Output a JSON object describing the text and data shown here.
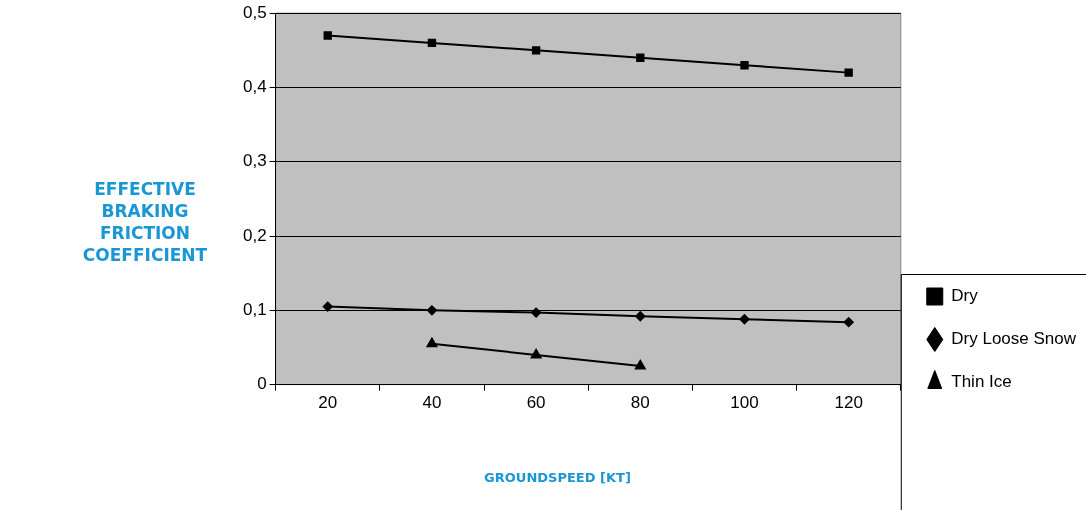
{
  "chart_data": {
    "type": "line",
    "xlabel": "GROUNDSPEED [KT]",
    "ylabel": "EFFECTIVE BRAKING FRICTION COEFFICIENT",
    "categories": [
      "20",
      "40",
      "60",
      "80",
      "100",
      "120"
    ],
    "series": [
      {
        "name": "Dry",
        "color": "#000000",
        "marker": "square",
        "values": [
          0.47,
          0.46,
          0.45,
          0.44,
          0.43,
          0.42
        ]
      },
      {
        "name": "Dry Loose Snow",
        "color": "#000000",
        "marker": "diamond",
        "values": [
          0.105,
          0.1,
          0.097,
          0.092,
          0.088,
          0.084
        ]
      },
      {
        "name": "Thin Ice",
        "color": "#000000",
        "marker": "triangle",
        "values": [
          null,
          0.055,
          0.04,
          0.025,
          null,
          null
        ]
      }
    ],
    "ylim": [
      0,
      0.5
    ],
    "yticks": [
      0,
      {
        "value": 0.1,
        "label": "0,1"
      },
      {
        "value": 0.2,
        "label": "0,2"
      },
      {
        "value": 0.3,
        "label": "0,3"
      },
      {
        "value": 0.4,
        "label": "0,4"
      },
      {
        "value": 0.5,
        "label": "0,5"
      }
    ],
    "grid": "y",
    "legend": "bottom right",
    "line_style": "solid"
  }
}
